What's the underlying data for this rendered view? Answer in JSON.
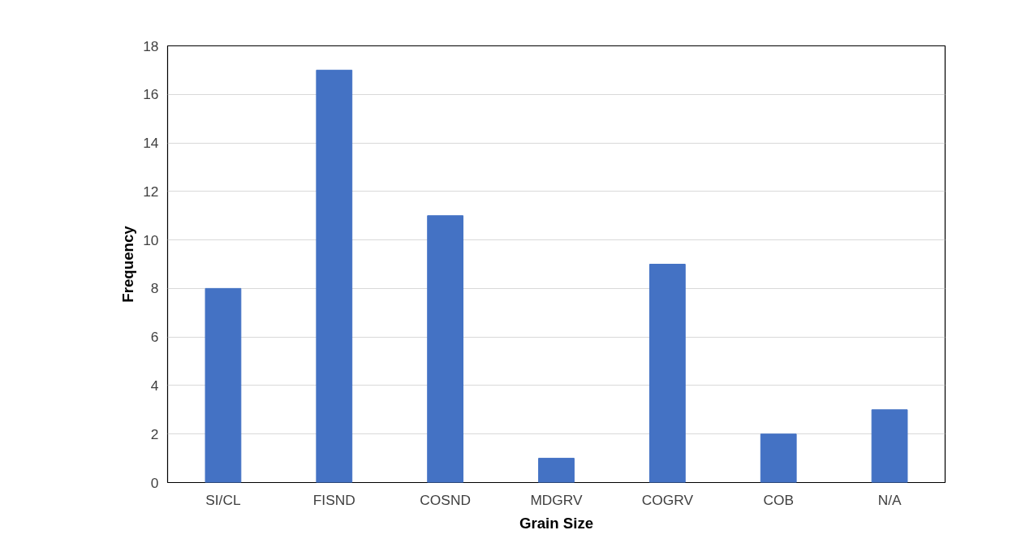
{
  "chart_data": {
    "type": "bar",
    "xlabel": "Grain Size",
    "ylabel": "Frequency",
    "categories": [
      "SI/CL",
      "FISND",
      "COSND",
      "MDGRV",
      "COGRV",
      "COB",
      "N/A"
    ],
    "values": [
      8,
      17,
      11,
      1,
      9,
      2,
      3
    ],
    "color": "#4472c4",
    "ylim": [
      0,
      18
    ],
    "yticks": [
      0,
      2,
      4,
      6,
      8,
      10,
      12,
      14,
      16,
      18
    ],
    "grid": "y"
  }
}
